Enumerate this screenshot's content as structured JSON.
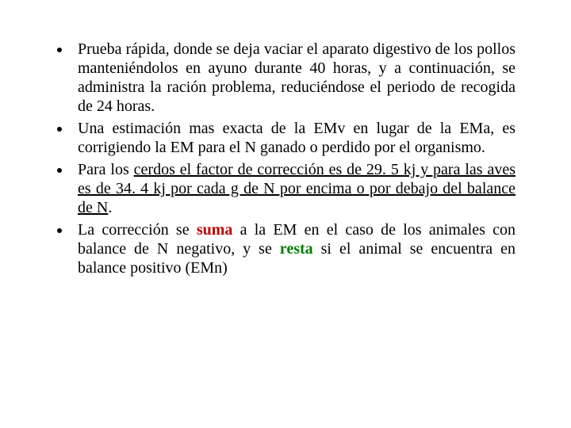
{
  "bullets": {
    "b1_p1": "Prueba rápida, donde se deja vaciar el aparato digestivo de los pollos manteniéndolos en ayuno durante 40 horas, y a continuación, se administra la ración problema, reduciéndose el periodo de recogida de 24 horas.",
    "b2_p1": "Una estimación mas exacta de la EMv en lugar de la EMa, es corrigiendo  la EM para el N ganado o perdido por el organismo.",
    "b3_p1": "Para los ",
    "b3_u1": "cerdos el factor de corrección es de 29. 5 kj y para las aves es de 34. 4 kj por cada g de N por encima o por debajo del balance de N",
    "b3_p2": ".",
    "b4_p1": "La corrección se ",
    "b4_suma": "suma",
    "b4_p2": " a la EM en el caso de los animales con balance de N negativo, y se ",
    "b4_resta": "resta",
    "b4_p3": " si el animal se encuentra en balance positivo (EMn)"
  },
  "colors": {
    "text": "#000000",
    "suma": "#c00000",
    "resta": "#008000",
    "background": "#ffffff"
  },
  "typography": {
    "font_family": "Times New Roman",
    "font_size_pt": 15,
    "line_height": 1.2
  }
}
